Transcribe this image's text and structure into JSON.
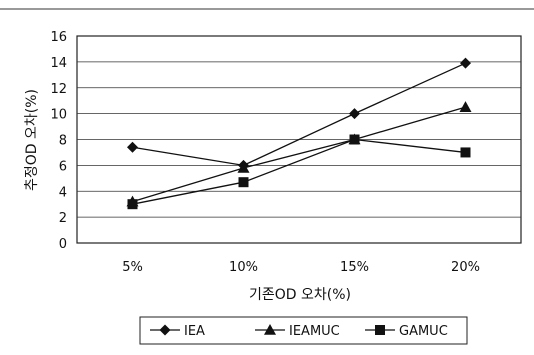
{
  "chart_data": {
    "type": "line",
    "categories": [
      "5%",
      "10%",
      "15%",
      "20%"
    ],
    "series": [
      {
        "name": "IEA",
        "marker": "diamond",
        "values": [
          7.4,
          6.0,
          10.0,
          13.9
        ]
      },
      {
        "name": "IEAMUC",
        "marker": "triangle",
        "values": [
          3.2,
          5.8,
          8.0,
          10.5
        ]
      },
      {
        "name": "GAMUC",
        "marker": "square",
        "values": [
          3.0,
          4.7,
          8.0,
          7.0
        ]
      }
    ],
    "xlabel": "기존OD 오차(%)",
    "ylabel": "추정OD 오차(%)",
    "ylim": [
      0,
      16
    ],
    "yticks": [
      0,
      2,
      4,
      6,
      8,
      10,
      12,
      14,
      16
    ],
    "grid": "horizontal",
    "legend": "bottom",
    "colors": {
      "line": "#111111",
      "plot_border": "#222222",
      "gridline": "#333333"
    }
  }
}
